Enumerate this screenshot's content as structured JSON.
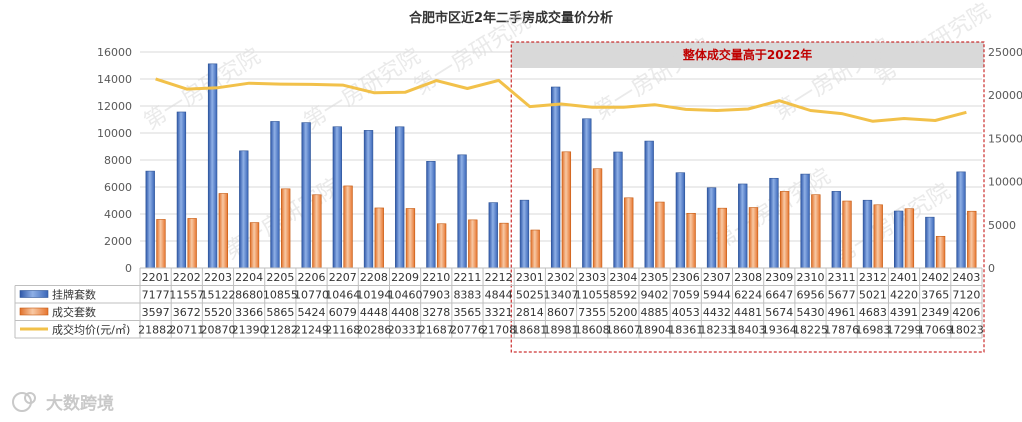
{
  "chart_data": {
    "type": "bar",
    "title": "合肥市区近2年二手房成交量价分析",
    "annotation": "整体成交量高于2022年",
    "categories": [
      "2201",
      "2202",
      "2203",
      "2204",
      "2205",
      "2206",
      "2207",
      "2208",
      "2209",
      "2210",
      "2211",
      "2212",
      "2301",
      "2302",
      "2303",
      "2304",
      "2305",
      "2306",
      "2307",
      "2308",
      "2309",
      "2310",
      "2311",
      "2312",
      "2401",
      "2402",
      "2403"
    ],
    "series": [
      {
        "name": "挂牌套数",
        "type": "bar",
        "axis": "left",
        "color": "#4472c4",
        "values": [
          7177,
          11557,
          15122,
          8680,
          10855,
          10770,
          10464,
          10194,
          10460,
          7903,
          8383,
          4844,
          5025,
          13407,
          11055,
          8592,
          9402,
          7059,
          5944,
          6224,
          6647,
          6956,
          5677,
          5021,
          4220,
          3765,
          7120
        ]
      },
      {
        "name": "成交套数",
        "type": "bar",
        "axis": "left",
        "color": "#ed7d31",
        "values": [
          3597,
          3672,
          5520,
          3366,
          5865,
          5424,
          6079,
          4448,
          4408,
          3278,
          3565,
          3321,
          2814,
          8607,
          7355,
          5200,
          4885,
          4053,
          4432,
          4481,
          5674,
          5430,
          4961,
          4683,
          4391,
          2349,
          4206
        ]
      },
      {
        "name": "成交均价(元/㎡)",
        "type": "line",
        "axis": "right",
        "color": "#f2c14a",
        "values": [
          21882,
          20711,
          20870,
          21390,
          21282,
          21249,
          21168,
          20286,
          20331,
          21687,
          20776,
          21708,
          18681,
          18981,
          18608,
          18607,
          18904,
          18361,
          18233,
          18403,
          19364,
          18225,
          17876,
          16983,
          17299,
          17069,
          18023
        ]
      }
    ],
    "y_left": {
      "min": 0,
      "max": 16000,
      "ticks": [
        0,
        2000,
        4000,
        6000,
        8000,
        10000,
        12000,
        14000,
        16000
      ]
    },
    "y_right": {
      "min": 0,
      "max": 25000,
      "ticks": [
        0,
        5000,
        10000,
        15000,
        20000,
        25000
      ]
    },
    "grid": true,
    "legend": "table-bottom",
    "highlight_range": [
      "2301",
      "2403"
    ]
  },
  "watermark": "第一房研究院",
  "brand": "大数跨境",
  "colors": {
    "bar1": "#4472c4",
    "bar2": "#ed7d31",
    "line": "#f2c14a",
    "box": "#c00000",
    "note_bg": "#d9d9d9"
  }
}
